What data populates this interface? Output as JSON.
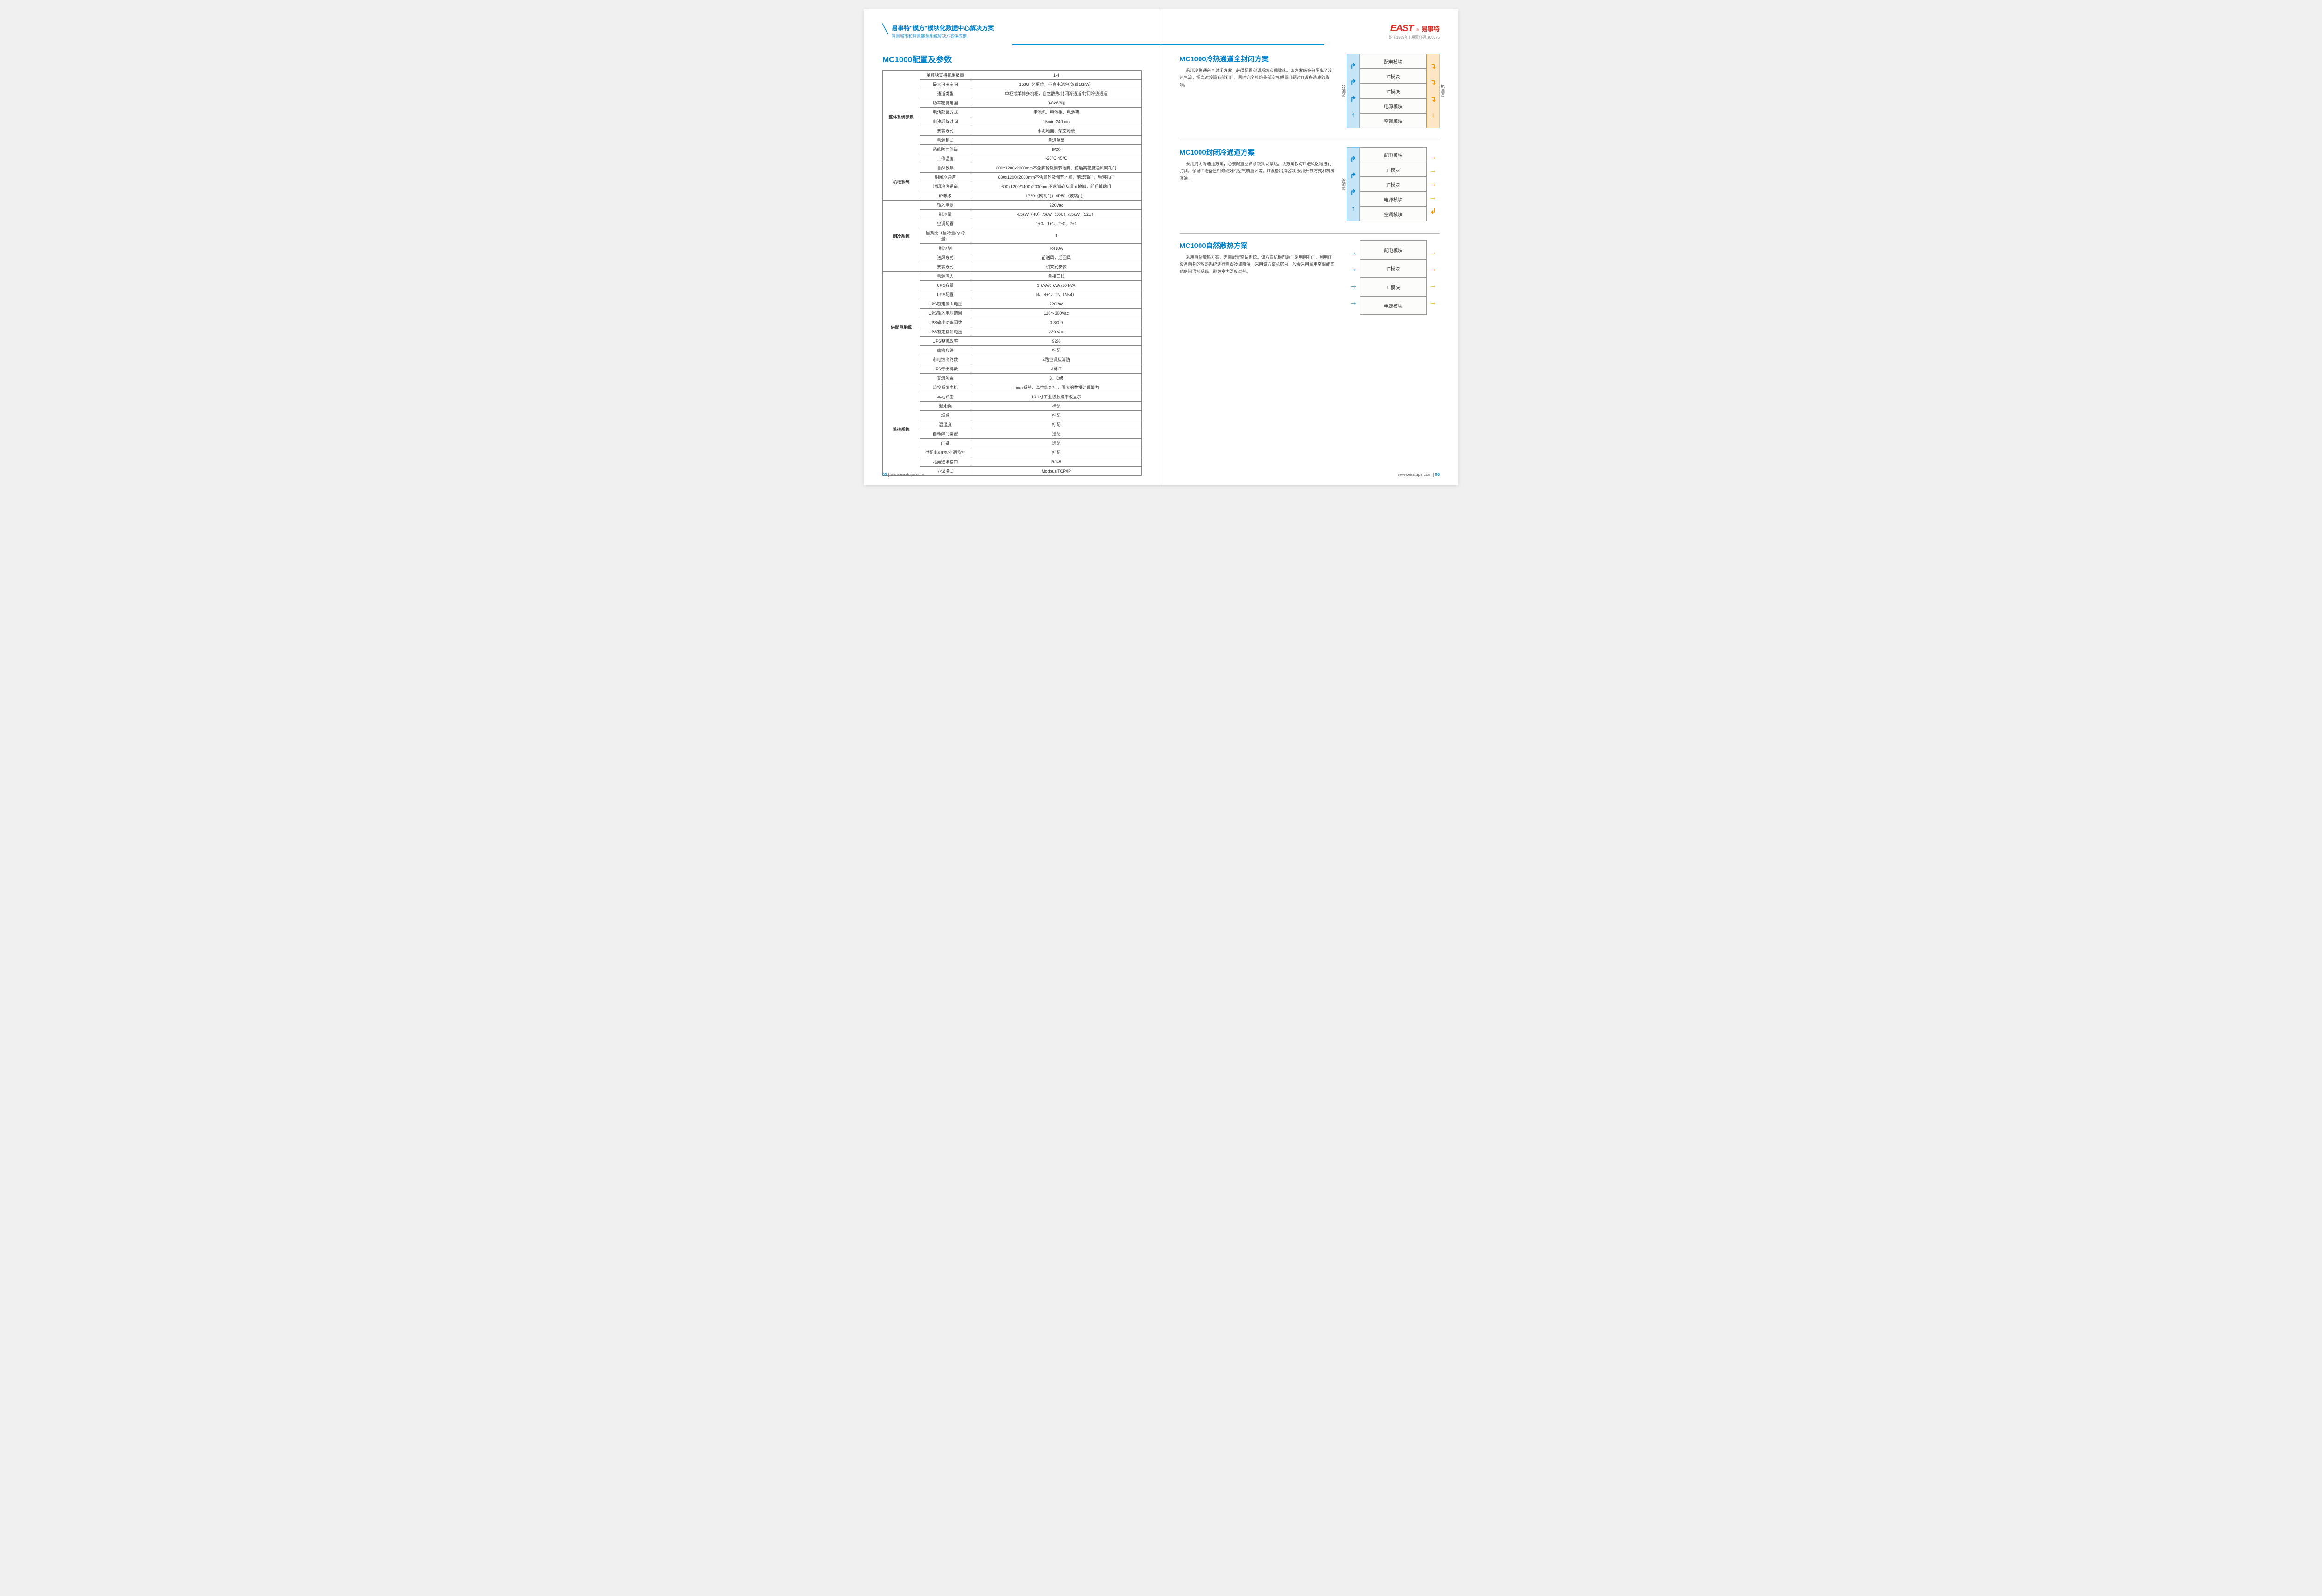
{
  "header": {
    "title": "易事特\"模方\"模块化数据中心解决方案",
    "subtitle": "智慧城市和智慧能源系统解决方案供应商",
    "logo_en": "EAST",
    "logo_cn": "易事特",
    "logo_sub": "始于1989年 | 股票代码:300376"
  },
  "left": {
    "title": "MC1000配置及参数",
    "groups": [
      {
        "name": "整体系统参数",
        "rows": [
          {
            "p": "单模块支持机柜数量",
            "v": "1-4"
          },
          {
            "p": "最大可用空间",
            "v": "158U（4柜位，不含电池包,负载18kW）"
          },
          {
            "p": "通道类型",
            "v": "单柜或单排多机柜，自然散热/封闭冷通道/封闭冷热通道"
          },
          {
            "p": "功率密度范围",
            "v": "3-8kW/柜"
          },
          {
            "p": "电池部署方式",
            "v": "电池包、电池柜、电池架"
          },
          {
            "p": "电池后备时间",
            "v": "15min-240min"
          },
          {
            "p": "安装方式",
            "v": "水泥地面、架空地板"
          },
          {
            "p": "电源制式",
            "v": "单进单出"
          },
          {
            "p": "系统防护等级",
            "v": "IP20"
          },
          {
            "p": "工作温度",
            "v": "-20℃-45℃"
          }
        ]
      },
      {
        "name": "机柜系统",
        "rows": [
          {
            "p": "自然散热",
            "v": "600x1200x2000mm不含脚轮及调节地脚，前后高密度通风网孔门"
          },
          {
            "p": "封闭冷通道",
            "v": "600x1200x2000mm不含脚轮及调节地脚，前玻璃门，后网孔门"
          },
          {
            "p": "封闭冷热通道",
            "v": "600x1200/1400x2000mm不含脚轮及调节地脚，前后玻璃门"
          },
          {
            "p": "IP等级",
            "v": "IP20（网孔门）/IP50（玻璃门）"
          }
        ]
      },
      {
        "name": "制冷系统",
        "rows": [
          {
            "p": "输入电源",
            "v": "220Vac"
          },
          {
            "p": "制冷量",
            "v": "4.5kW（4U）/8kW（10U）/15kW（12U）"
          },
          {
            "p": "空调配置",
            "v": "1+0、1+1、2+0、2+1"
          },
          {
            "p": "显热比（显冷量/总冷量）",
            "v": "1"
          },
          {
            "p": "制冷剂",
            "v": "R410A"
          },
          {
            "p": "送风方式",
            "v": "前送风，后回风"
          },
          {
            "p": "安装方式",
            "v": "机架式安装"
          }
        ]
      },
      {
        "name": "供配电系统",
        "rows": [
          {
            "p": "电源输入",
            "v": "单相三线"
          },
          {
            "p": "UPS容量",
            "v": "3 kVA/6 kVA /10 kVA"
          },
          {
            "p": "UPS配置",
            "v": "N、N+1、2N（N≤4）"
          },
          {
            "p": "UPS额定输入电压",
            "v": "220Vac"
          },
          {
            "p": "UPS输入电压范围",
            "v": "110～300Vac"
          },
          {
            "p": "UPS输出功率因数",
            "v": "0.8/0.9"
          },
          {
            "p": "UPS额定输出电压",
            "v": "220 Vac"
          },
          {
            "p": "UPS整机效率",
            "v": "92%"
          },
          {
            "p": "维修旁路",
            "v": "标配"
          },
          {
            "p": "市电馈出路数",
            "v": "4路空调及消防"
          },
          {
            "p": "UPS馈出路数",
            "v": "4路IT"
          },
          {
            "p": "交流防雷",
            "v": "B、C级"
          }
        ]
      },
      {
        "name": "监控系统",
        "rows": [
          {
            "p": "监控系统主机",
            "v": "Linux系统，高性能CPU，强大的数据处理能力"
          },
          {
            "p": "本地界面",
            "v": "10.1寸工业级触摸平板显示"
          },
          {
            "p": "漏水绳",
            "v": "标配"
          },
          {
            "p": "烟感",
            "v": "标配"
          },
          {
            "p": "温湿度",
            "v": "标配"
          },
          {
            "p": "自动弹门装置",
            "v": "选配"
          },
          {
            "p": "门磁",
            "v": "选配"
          },
          {
            "p": "供配电/UPS/空调监控",
            "v": "标配"
          },
          {
            "p": "北向通讯接口",
            "v": "RJ45"
          },
          {
            "p": "协议格式",
            "v": "Modbus TCP/IP"
          }
        ]
      }
    ]
  },
  "right": {
    "solutions": [
      {
        "title": "MC1000冷热通道全封闭方案",
        "desc": "采用冷热通道全封闭方案，必须配置空调系统实现散热。该方案既充分隔离了冷热气流，提高对冷量有效利用，同时完全杜绝外部空气质量问题对IT设备造成的影响。",
        "modules": [
          "配电模块",
          "IT模块",
          "IT模块",
          "电源模块",
          "空调模块"
        ],
        "cold_label": "冷通道",
        "hot_label": "热通道",
        "left_arrows": [
          "↱",
          "↱",
          "↱",
          "↑"
        ],
        "right_arrows": [
          "↴",
          "↴",
          "↴",
          "↓"
        ],
        "left_color": "blue",
        "right_color": "orange",
        "show_cold": true,
        "show_hot": true,
        "hot_bg": true
      },
      {
        "title": "MC1000封闭冷通道方案",
        "desc": "采用封闭冷通道方案，必须配置空调系统实现散热。该方案仅对IT进风区域进行封闭，保证IT设备在相对较好的空气质量环境，IT设备出风区域 采用开放方式和机房互通。",
        "modules": [
          "配电模块",
          "IT模块",
          "IT模块",
          "电源模块",
          "空调模块"
        ],
        "cold_label": "冷通道",
        "left_arrows": [
          "↱",
          "↱",
          "↱",
          "↑"
        ],
        "right_arrows": [
          "→",
          "→",
          "→",
          "→",
          "↲"
        ],
        "left_color": "blue",
        "right_color": "orange",
        "show_cold": true,
        "show_hot": false
      },
      {
        "title": "MC1000自然散热方案",
        "desc": "采用自然散热方案，无需配置空调系统。该方案机柜前后门采用网孔门，利用IT设备自身的散热系统进行自然冷却降温，采用该方案机房内一般会采用民用空调或其他房间温控系统，避免室内温度过热。",
        "modules": [
          "配电模块",
          "IT模块",
          "IT模块",
          "电源模块"
        ],
        "left_arrows": [
          "→",
          "→",
          "→",
          "→"
        ],
        "right_arrows": [
          "→",
          "→",
          "→",
          "→"
        ],
        "left_color": "blue",
        "right_color": "orange",
        "show_cold": false,
        "show_hot": false
      }
    ]
  },
  "footer": {
    "url": "www.eastups.com",
    "page_left": "05",
    "page_right": "06"
  }
}
